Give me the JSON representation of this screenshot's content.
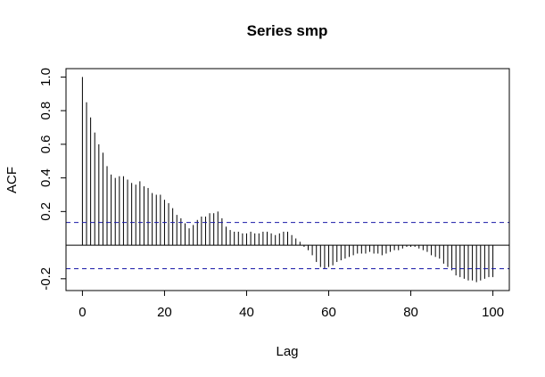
{
  "chart_data": {
    "type": "bar",
    "title": "Series  smp",
    "xlabel": "Lag",
    "ylabel": "ACF",
    "xlim": [
      -4,
      104
    ],
    "ylim": [
      -0.27,
      1.05
    ],
    "x_ticks": [
      "0",
      "20",
      "40",
      "60",
      "80",
      "100"
    ],
    "y_ticks": [
      "-0.2",
      "0.2",
      "0.4",
      "0.6",
      "0.8",
      "1.0"
    ],
    "confidence_bounds": [
      0.135,
      -0.14
    ],
    "colors": {
      "bars": "#000000",
      "zero_line": "#000000",
      "confidence_lines": "#1a1aa8",
      "frame": "#000000"
    },
    "lags": [
      0,
      1,
      2,
      3,
      4,
      5,
      6,
      7,
      8,
      9,
      10,
      11,
      12,
      13,
      14,
      15,
      16,
      17,
      18,
      19,
      20,
      21,
      22,
      23,
      24,
      25,
      26,
      27,
      28,
      29,
      30,
      31,
      32,
      33,
      34,
      35,
      36,
      37,
      38,
      39,
      40,
      41,
      42,
      43,
      44,
      45,
      46,
      47,
      48,
      49,
      50,
      51,
      52,
      53,
      54,
      55,
      56,
      57,
      58,
      59,
      60,
      61,
      62,
      63,
      64,
      65,
      66,
      67,
      68,
      69,
      70,
      71,
      72,
      73,
      74,
      75,
      76,
      77,
      78,
      79,
      80,
      81,
      82,
      83,
      84,
      85,
      86,
      87,
      88,
      89,
      90,
      91,
      92,
      93,
      94,
      95,
      96,
      97,
      98,
      99,
      100
    ],
    "values": [
      1.0,
      0.85,
      0.76,
      0.67,
      0.6,
      0.55,
      0.47,
      0.42,
      0.4,
      0.41,
      0.41,
      0.39,
      0.37,
      0.36,
      0.38,
      0.35,
      0.34,
      0.31,
      0.3,
      0.3,
      0.27,
      0.25,
      0.22,
      0.18,
      0.16,
      0.13,
      0.1,
      0.12,
      0.15,
      0.17,
      0.17,
      0.19,
      0.19,
      0.2,
      0.16,
      0.11,
      0.09,
      0.08,
      0.08,
      0.07,
      0.07,
      0.08,
      0.07,
      0.07,
      0.08,
      0.08,
      0.07,
      0.06,
      0.07,
      0.08,
      0.08,
      0.06,
      0.04,
      0.02,
      -0.01,
      -0.03,
      -0.06,
      -0.1,
      -0.13,
      -0.14,
      -0.13,
      -0.12,
      -0.1,
      -0.09,
      -0.08,
      -0.07,
      -0.06,
      -0.05,
      -0.05,
      -0.05,
      -0.04,
      -0.05,
      -0.05,
      -0.06,
      -0.05,
      -0.04,
      -0.03,
      -0.03,
      -0.02,
      -0.01,
      -0.01,
      -0.01,
      -0.02,
      -0.03,
      -0.04,
      -0.06,
      -0.07,
      -0.08,
      -0.11,
      -0.13,
      -0.15,
      -0.18,
      -0.19,
      -0.2,
      -0.21,
      -0.21,
      -0.22,
      -0.21,
      -0.2,
      -0.19,
      -0.19
    ]
  }
}
